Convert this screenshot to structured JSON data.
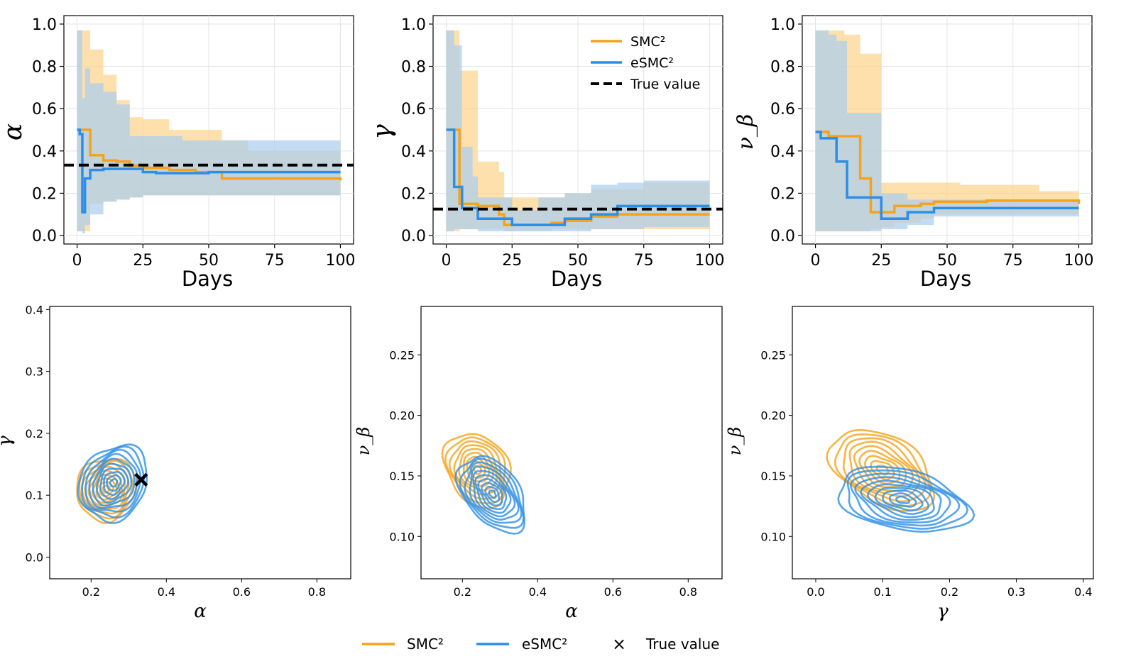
{
  "colors": {
    "smc": "#f5a31a",
    "esmc": "#2b8ee8",
    "smc_band": "#fdd38a",
    "esmc_band": "#a9cdee",
    "true": "#000000"
  },
  "legend_top": {
    "smc": "SMC²",
    "esmc": "eSMC²",
    "true": "True value"
  },
  "legend_bottom": {
    "smc": "SMC²",
    "esmc": "eSMC²",
    "true_marker": "×",
    "true": "True value"
  },
  "chart_data": [
    {
      "type": "line",
      "xlabel": "Days",
      "ylabel": "α",
      "xlim": [
        -5,
        105
      ],
      "ylim": [
        -0.04,
        1.04
      ],
      "xticks": [
        "0",
        "25",
        "50",
        "75",
        "100"
      ],
      "yticks": [
        "0.0",
        "0.2",
        "0.4",
        "0.6",
        "0.8",
        "1.0"
      ],
      "true_value": 0.333,
      "series": [
        {
          "name": "SMC²",
          "x": [
            0,
            2,
            5,
            10,
            15,
            20,
            25,
            35,
            45,
            55,
            65,
            75,
            85,
            100
          ],
          "values": [
            0.5,
            0.5,
            0.38,
            0.355,
            0.35,
            0.33,
            0.32,
            0.31,
            0.3,
            0.27,
            0.27,
            0.27,
            0.27,
            0.26
          ],
          "lower": [
            0.02,
            0.02,
            0.15,
            0.16,
            0.17,
            0.18,
            0.19,
            0.19,
            0.19,
            0.19,
            0.19,
            0.19,
            0.19,
            0.19
          ],
          "upper": [
            0.97,
            0.97,
            0.88,
            0.76,
            0.64,
            0.56,
            0.55,
            0.5,
            0.5,
            0.45,
            0.4,
            0.4,
            0.4,
            0.4
          ]
        },
        {
          "name": "eSMC²",
          "x": [
            0,
            1,
            2,
            3,
            5,
            10,
            15,
            20,
            25,
            30,
            40,
            50,
            65,
            75,
            85,
            100
          ],
          "values": [
            0.5,
            0.48,
            0.11,
            0.27,
            0.31,
            0.315,
            0.315,
            0.315,
            0.3,
            0.295,
            0.295,
            0.3,
            0.3,
            0.3,
            0.3,
            0.3
          ],
          "lower": [
            0.02,
            0.02,
            0.01,
            0.05,
            0.1,
            0.16,
            0.17,
            0.18,
            0.19,
            0.19,
            0.19,
            0.19,
            0.19,
            0.19,
            0.19,
            0.19
          ],
          "upper": [
            0.97,
            0.97,
            0.65,
            0.79,
            0.72,
            0.68,
            0.62,
            0.47,
            0.47,
            0.47,
            0.45,
            0.45,
            0.45,
            0.45,
            0.45,
            0.45
          ]
        }
      ]
    },
    {
      "type": "line",
      "xlabel": "Days",
      "ylabel": "γ",
      "xlim": [
        -5,
        105
      ],
      "ylim": [
        -0.04,
        1.04
      ],
      "xticks": [
        "0",
        "25",
        "50",
        "75",
        "100"
      ],
      "yticks": [
        "0.0",
        "0.2",
        "0.4",
        "0.6",
        "0.8",
        "1.0"
      ],
      "true_value": 0.125,
      "series": [
        {
          "name": "SMC²",
          "x": [
            0,
            4,
            5,
            12,
            20,
            22,
            30,
            40,
            45,
            55,
            65,
            75,
            85,
            100
          ],
          "values": [
            0.5,
            0.5,
            0.15,
            0.14,
            0.1,
            0.05,
            0.05,
            0.06,
            0.07,
            0.09,
            0.1,
            0.1,
            0.1,
            0.1
          ],
          "lower": [
            0.02,
            0.02,
            0.03,
            0.03,
            0.03,
            0.02,
            0.02,
            0.03,
            0.03,
            0.03,
            0.03,
            0.03,
            0.03,
            0.03
          ],
          "upper": [
            0.97,
            0.97,
            0.78,
            0.35,
            0.3,
            0.18,
            0.18,
            0.18,
            0.2,
            0.22,
            0.22,
            0.25,
            0.25,
            0.25
          ]
        },
        {
          "name": "eSMC²",
          "x": [
            0,
            2,
            3,
            6,
            10,
            12,
            20,
            25,
            35,
            45,
            55,
            65,
            75,
            85,
            100
          ],
          "values": [
            0.5,
            0.5,
            0.23,
            0.13,
            0.13,
            0.08,
            0.08,
            0.05,
            0.05,
            0.08,
            0.1,
            0.14,
            0.14,
            0.14,
            0.14
          ],
          "lower": [
            0.02,
            0.02,
            0.03,
            0.03,
            0.03,
            0.02,
            0.02,
            0.02,
            0.02,
            0.02,
            0.03,
            0.03,
            0.04,
            0.04,
            0.04
          ],
          "upper": [
            0.97,
            0.97,
            0.9,
            0.42,
            0.28,
            0.18,
            0.18,
            0.12,
            0.18,
            0.2,
            0.24,
            0.25,
            0.26,
            0.26,
            0.26
          ]
        }
      ]
    },
    {
      "type": "line",
      "xlabel": "Days",
      "ylabel": "ν_β",
      "xlim": [
        -5,
        105
      ],
      "ylim": [
        -0.04,
        1.04
      ],
      "xticks": [
        "0",
        "25",
        "50",
        "75",
        "100"
      ],
      "yticks": [
        "0.0",
        "0.2",
        "0.4",
        "0.6",
        "0.8",
        "1.0"
      ],
      "series": [
        {
          "name": "SMC²",
          "x": [
            0,
            5,
            11,
            17,
            21,
            25,
            30,
            40,
            45,
            55,
            65,
            75,
            85,
            100
          ],
          "values": [
            0.49,
            0.47,
            0.47,
            0.27,
            0.11,
            0.11,
            0.14,
            0.15,
            0.16,
            0.16,
            0.165,
            0.165,
            0.165,
            0.15
          ],
          "lower": [
            0.02,
            0.02,
            0.02,
            0.02,
            0.03,
            0.04,
            0.06,
            0.08,
            0.1,
            0.1,
            0.1,
            0.1,
            0.1,
            0.1
          ],
          "upper": [
            0.97,
            0.97,
            0.95,
            0.86,
            0.86,
            0.25,
            0.25,
            0.25,
            0.25,
            0.24,
            0.24,
            0.24,
            0.21,
            0.21
          ]
        },
        {
          "name": "eSMC²",
          "x": [
            0,
            2,
            5,
            8,
            12,
            20,
            25,
            30,
            35,
            45,
            55,
            65,
            75,
            85,
            100
          ],
          "values": [
            0.49,
            0.46,
            0.46,
            0.35,
            0.18,
            0.18,
            0.08,
            0.08,
            0.11,
            0.13,
            0.13,
            0.13,
            0.13,
            0.13,
            0.13
          ],
          "lower": [
            0.02,
            0.02,
            0.02,
            0.02,
            0.02,
            0.02,
            0.03,
            0.03,
            0.05,
            0.09,
            0.09,
            0.09,
            0.09,
            0.09,
            0.09
          ],
          "upper": [
            0.97,
            0.97,
            0.95,
            0.92,
            0.58,
            0.58,
            0.2,
            0.2,
            0.17,
            0.17,
            0.17,
            0.17,
            0.17,
            0.17,
            0.17
          ]
        }
      ]
    },
    {
      "type": "contour",
      "xlabel": "α",
      "ylabel": "γ",
      "xlim": [
        0.09,
        0.89
      ],
      "ylim": [
        -0.035,
        0.405
      ],
      "xticks": [
        "0.2",
        "0.4",
        "0.6",
        "0.8"
      ],
      "yticks": [
        "0.0",
        "0.1",
        "0.2",
        "0.3",
        "0.4"
      ],
      "true_point": [
        0.333,
        0.125
      ],
      "series": [
        {
          "name": "SMC²",
          "center": [
            0.24,
            0.11
          ],
          "sx": 0.085,
          "sy": 0.085,
          "angle": -62,
          "levels": 9
        },
        {
          "name": "eSMC²",
          "center": [
            0.26,
            0.12
          ],
          "sx": 0.105,
          "sy": 0.095,
          "angle": -60,
          "levels": 10
        }
      ]
    },
    {
      "type": "contour",
      "xlabel": "α",
      "ylabel": "ν_β",
      "xlim": [
        0.09,
        0.89
      ],
      "ylim": [
        0.065,
        0.29
      ],
      "xticks": [
        "0.2",
        "0.4",
        "0.6",
        "0.8"
      ],
      "yticks": [
        "0.10",
        "0.15",
        "0.20",
        "0.25"
      ],
      "series": [
        {
          "name": "SMC²",
          "center": [
            0.24,
            0.155
          ],
          "sx": 0.105,
          "sy": 0.045,
          "angle": 58,
          "levels": 9
        },
        {
          "name": "eSMC²",
          "center": [
            0.28,
            0.135
          ],
          "sx": 0.115,
          "sy": 0.04,
          "angle": 52,
          "levels": 10
        }
      ]
    },
    {
      "type": "contour",
      "xlabel": "γ",
      "ylabel": "ν_β",
      "xlim": [
        -0.035,
        0.415
      ],
      "ylim": [
        0.065,
        0.29
      ],
      "xticks": [
        "0.0",
        "0.1",
        "0.2",
        "0.3",
        "0.4"
      ],
      "yticks": [
        "0.10",
        "0.15",
        "0.20",
        "0.25"
      ],
      "series": [
        {
          "name": "SMC²",
          "center": [
            0.1,
            0.155
          ],
          "sx": 0.085,
          "sy": 0.05,
          "angle": 30,
          "levels": 9
        },
        {
          "name": "eSMC²",
          "center": [
            0.13,
            0.13
          ],
          "sx": 0.1,
          "sy": 0.045,
          "angle": 12,
          "levels": 10
        }
      ]
    }
  ]
}
